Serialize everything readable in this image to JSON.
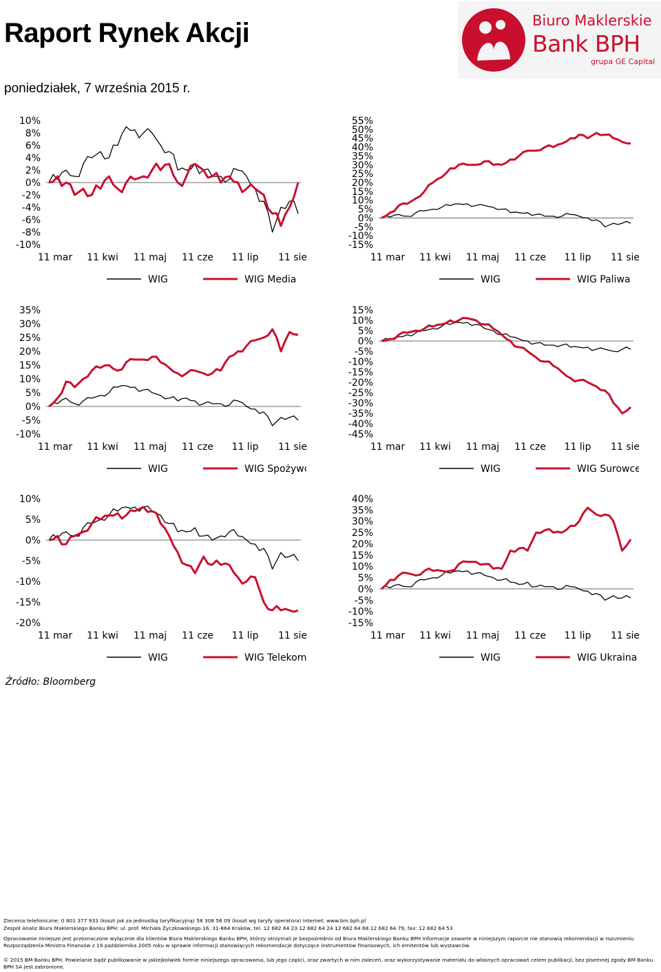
{
  "header": {
    "title": "Raport Rynek Akcji",
    "date": "poniedziałek, 7 września 2015 r."
  },
  "logo": {
    "line1": "Biuro Maklerskie",
    "line2": "Bank BPH",
    "line3": "grupa GE Capital",
    "color": "#c8102e"
  },
  "colors": {
    "wig": "#000000",
    "sector": "#c8102e",
    "zero": "#888888"
  },
  "chart_data": [
    {
      "type": "line",
      "x_ticks": [
        "11 mar",
        "11 kwi",
        "11 maj",
        "11 cze",
        "11 lip",
        "11 sie"
      ],
      "y_ticks": [
        "10%",
        "8%",
        "6%",
        "4%",
        "2%",
        "0%",
        "-2%",
        "-4%",
        "-6%",
        "-8%",
        "-10%"
      ],
      "ylim": [
        -10,
        10
      ],
      "series": [
        {
          "name": "WIG",
          "values": [
            0,
            0.5,
            2,
            1,
            3,
            4,
            5,
            4,
            6,
            9,
            8.5,
            8,
            8,
            6,
            5,
            2,
            2,
            3,
            2,
            1,
            1,
            0.5,
            2,
            1,
            -1,
            -3,
            -8,
            -4,
            -3,
            -5
          ]
        },
        {
          "name": "WIG Media",
          "values": [
            0,
            1,
            0,
            -2,
            -1,
            -2,
            -1,
            1,
            -1,
            0,
            0.5,
            1,
            2,
            2,
            3,
            0,
            1,
            3,
            2,
            1,
            0,
            1,
            0,
            -1,
            -1,
            -2,
            -5,
            -7,
            -4,
            0
          ]
        }
      ]
    },
    {
      "type": "line",
      "x_ticks": [
        "11 mar",
        "11 kwi",
        "11 maj",
        "11 cze",
        "11 lip",
        "11 sie"
      ],
      "y_ticks": [
        "55%",
        "50%",
        "45%",
        "40%",
        "35%",
        "30%",
        "25%",
        "20%",
        "15%",
        "10%",
        "5%",
        "0%",
        "-5%",
        "-10%",
        "-15%"
      ],
      "ylim": [
        -15,
        55
      ],
      "series": [
        {
          "name": "WIG",
          "values": [
            0,
            0.5,
            2,
            1,
            3,
            4,
            5,
            6,
            7,
            8,
            8,
            7,
            7,
            6,
            5,
            3,
            3,
            3,
            2,
            1,
            1,
            1,
            2,
            1,
            0,
            -1,
            -5,
            -3,
            -3,
            -3
          ]
        },
        {
          "name": "WIG Paliwa",
          "values": [
            0,
            3,
            7,
            8,
            11,
            15,
            20,
            23,
            28,
            30,
            30,
            30,
            32,
            30,
            30,
            33,
            35,
            38,
            38,
            40,
            40,
            42,
            45,
            47,
            45,
            48,
            47,
            45,
            43,
            42
          ]
        }
      ]
    },
    {
      "type": "line",
      "x_ticks": [
        "11 mar",
        "11 kwi",
        "11 maj",
        "11 cze",
        "11 lip",
        "11 sie"
      ],
      "y_ticks": [
        "35%",
        "30%",
        "25%",
        "20%",
        "15%",
        "10%",
        "5%",
        "0%",
        "-5%",
        "-10%"
      ],
      "ylim": [
        -10,
        35
      ],
      "series": [
        {
          "name": "WIG",
          "values": [
            0,
            1,
            3,
            1,
            2,
            3,
            4,
            5,
            7,
            7.5,
            7,
            6,
            5,
            4,
            3,
            2,
            3,
            2,
            1,
            1,
            1,
            0.5,
            2,
            0,
            -1,
            -2,
            -7,
            -4,
            -4,
            -5
          ]
        },
        {
          "name": "WIG Spożywczy",
          "values": [
            0,
            3,
            9,
            7,
            10,
            13,
            14,
            15,
            13,
            16,
            17,
            17,
            18,
            16,
            14,
            12,
            12,
            13,
            12,
            12,
            13,
            18,
            20,
            22,
            24,
            25,
            28,
            20,
            27,
            26
          ]
        }
      ]
    },
    {
      "type": "line",
      "x_ticks": [
        "11 mar",
        "11 kwi",
        "11 maj",
        "11 cze",
        "11 lip",
        "11 sie"
      ],
      "y_ticks": [
        "15%",
        "10%",
        "5%",
        "0%",
        "-5%",
        "-10%",
        "-15%",
        "-20%",
        "-25%",
        "-30%",
        "-35%",
        "-40%",
        "-45%"
      ],
      "ylim": [
        -45,
        15
      ],
      "series": [
        {
          "name": "WIG",
          "values": [
            0,
            0.5,
            2,
            3,
            4,
            5,
            6,
            7,
            8,
            9,
            9,
            8,
            6,
            5,
            3,
            2,
            1,
            0,
            -1,
            -2,
            -2,
            -2,
            -3,
            -3,
            -3,
            -4,
            -4,
            -5,
            -4,
            -4
          ]
        },
        {
          "name": "WIG Surowce",
          "values": [
            0,
            1,
            3,
            4,
            5,
            6,
            7,
            8,
            10,
            10,
            11,
            10,
            8,
            6,
            3,
            0,
            -3,
            -5,
            -8,
            -10,
            -12,
            -15,
            -18,
            -19,
            -20,
            -22,
            -24,
            -30,
            -35,
            -32
          ]
        }
      ]
    },
    {
      "type": "line",
      "x_ticks": [
        "11 mar",
        "11 kwi",
        "11 maj",
        "11 cze",
        "11 lip",
        "11 sie"
      ],
      "y_ticks": [
        "10%",
        "5%",
        "0%",
        "-5%",
        "-10%",
        "-15%",
        "-20%"
      ],
      "ylim": [
        -20,
        10
      ],
      "series": [
        {
          "name": "WIG",
          "values": [
            0,
            0.5,
            2,
            1,
            3,
            4,
            5,
            6,
            7,
            8,
            8,
            8,
            7,
            6,
            4,
            2,
            2,
            3,
            1,
            0,
            1,
            2,
            1,
            0,
            -1,
            -2,
            -7,
            -3,
            -4,
            -5
          ]
        },
        {
          "name": "WIG Telekomunikacja",
          "values": [
            0,
            1,
            -1,
            1,
            2,
            4,
            5,
            6,
            6.5,
            6,
            7,
            8,
            7,
            4,
            1,
            -3,
            -6,
            -8,
            -4,
            -6,
            -6,
            -6,
            -9,
            -10,
            -9,
            -15,
            -17,
            -17,
            -17,
            -17
          ]
        }
      ]
    },
    {
      "type": "line",
      "x_ticks": [
        "11 mar",
        "11 kwi",
        "11 maj",
        "11 cze",
        "11 lip",
        "11 sie"
      ],
      "y_ticks": [
        "40%",
        "35%",
        "30%",
        "25%",
        "20%",
        "15%",
        "10%",
        "5%",
        "0%",
        "-5%",
        "-10%",
        "-15%"
      ],
      "ylim": [
        -15,
        40
      ],
      "series": [
        {
          "name": "WIG",
          "values": [
            0,
            0.5,
            2,
            1,
            3,
            4,
            5,
            6,
            7,
            8,
            8,
            7,
            6,
            5,
            4,
            3,
            2,
            3,
            1,
            1,
            1,
            0,
            1,
            0,
            -1,
            -2,
            -5,
            -3,
            -4,
            -4
          ]
        },
        {
          "name": "WIG Ukraina",
          "values": [
            0,
            4,
            6,
            7,
            6,
            8,
            8,
            8,
            8,
            11,
            12,
            12,
            11,
            9,
            9,
            17,
            18,
            17,
            25,
            26,
            25,
            25,
            28,
            30,
            36,
            33,
            33,
            30,
            17,
            22
          ]
        }
      ]
    }
  ],
  "legends": [
    {
      "a": "WIG",
      "b": "WIG Media"
    },
    {
      "a": "WIG",
      "b": "WIG Paliwa"
    },
    {
      "a": "WIG",
      "b": "WIG Spożywczy"
    },
    {
      "a": "WIG",
      "b": "WIG Surowce"
    },
    {
      "a": "WIG",
      "b": "WIG Telekomunikacja"
    },
    {
      "a": "WIG",
      "b": "WIG Ukraina"
    }
  ],
  "source": "Źródło: Bloomberg",
  "footer": {
    "line1": "Zlecenia telefoniczne: 0  801  377  933 (koszt jak za jednostkę taryfikacyjną)   58 308 56 09 (koszt wg taryfy operatora)   Internet: www.bm.bph.pl",
    "line2": "Zespół Analiz Biura Maklerskiego Banku BPH: ul. prof. Michała Życzkowskiego 16, 31-864 Kraków,  tel. 12 682 64 23   12 682 64 24   12  682 64 68   12 682 64 79,   fax: 12  682 64 53",
    "line3": "Opracowanie niniejsze jest przeznaczone wyłącznie dla klientów Biura Maklerskiego Banku BPH, którzy otrzymali je bezpośrednio od Biura Maklerskiego Banku BPH Informacje zawarte w niniejszym raporcie nie stanowią rekomendacji w rozumieniu Rozporządzenia Ministra Finansów z 19 października 2005 roku w sprawie informacji stanowiących rekomendacje dotyczące instrumentów finansowych, ich emitentów lub wystawców.",
    "line4": "© 2015 BM Banku BPH. Powielanie bądź publikowanie w jakiejkolwiek formie niniejszego opracowania, lub jego części, oraz zwartych w nim zaleceń, oraz wykorzystywanie materiału do własnych opracowań celem publikacji, bez pisemnej zgody BM Banku BPH SA jest zabronione."
  }
}
